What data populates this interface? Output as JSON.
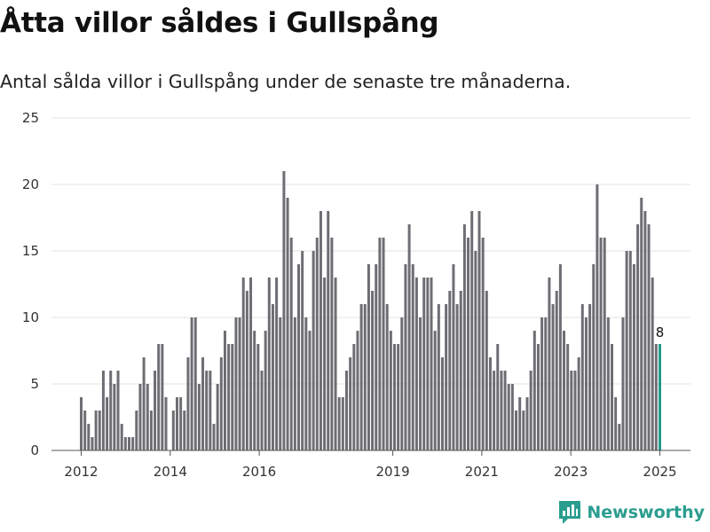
{
  "header": {
    "title": "Åtta villor såldes i Gullspång",
    "subtitle": "Antal sålda villor i Gullspång under de senaste tre månaderna."
  },
  "brand": {
    "name": "Newsworthy",
    "icon": "bar-chart-logo-icon",
    "color": "#2a9d8f"
  },
  "chart_data": {
    "type": "bar",
    "xlabel": "",
    "ylabel": "",
    "ylim": [
      0,
      25
    ],
    "yticks": [
      0,
      5,
      10,
      15,
      20,
      25
    ],
    "xticks": [
      "2012",
      "2014",
      "2016",
      "2019",
      "2021",
      "2023",
      "2025"
    ],
    "grid": true,
    "bar_color": "#6e6d73",
    "highlight_color": "#1f9a8a",
    "x_start": "2012-01",
    "x_end": "2025-01",
    "values": [
      4,
      3,
      2,
      1,
      3,
      3,
      6,
      4,
      6,
      5,
      6,
      2,
      1,
      1,
      1,
      3,
      5,
      7,
      5,
      3,
      6,
      8,
      8,
      4,
      0,
      3,
      4,
      4,
      3,
      7,
      10,
      10,
      5,
      7,
      6,
      6,
      2,
      5,
      7,
      9,
      8,
      8,
      10,
      10,
      13,
      12,
      13,
      9,
      8,
      6,
      9,
      13,
      11,
      13,
      10,
      21,
      19,
      16,
      10,
      14,
      15,
      10,
      9,
      15,
      16,
      18,
      13,
      18,
      16,
      13,
      4,
      4,
      6,
      7,
      8,
      9,
      11,
      11,
      14,
      12,
      14,
      16,
      16,
      11,
      9,
      8,
      8,
      10,
      14,
      17,
      14,
      13,
      10,
      13,
      13,
      13,
      9,
      11,
      7,
      11,
      12,
      14,
      11,
      12,
      17,
      16,
      18,
      15,
      18,
      16,
      12,
      7,
      6,
      8,
      6,
      6,
      5,
      5,
      3,
      4,
      3,
      4,
      6,
      9,
      8,
      10,
      10,
      13,
      11,
      12,
      14,
      9,
      8,
      6,
      6,
      7,
      11,
      10,
      11,
      14,
      20,
      16,
      16,
      10,
      8,
      4,
      2,
      10,
      15,
      15,
      14,
      17,
      19,
      18,
      17,
      13,
      8,
      8
    ],
    "last_value_label": "8"
  }
}
